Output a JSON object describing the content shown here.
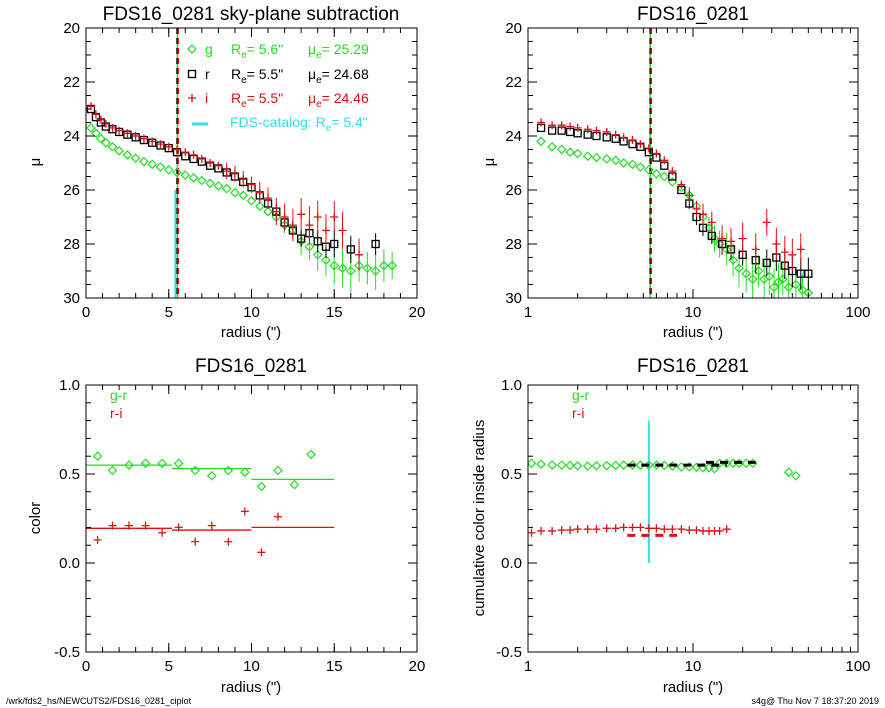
{
  "colors": {
    "g": "#22dd22",
    "r": "#000000",
    "i": "#dd1111",
    "catalog": "#33ddee"
  },
  "footer": {
    "left": "/wrk/fds2_hs/NEWCUTS2/FDS16_0281_ciplot",
    "right": "s4g@  Thu Nov  7 18:37:20 2019"
  },
  "chart_data": [
    {
      "type": "scatter",
      "title": "FDS16_0281 sky-plane subtraction",
      "xlabel": "radius (\")",
      "ylabel": "μ",
      "xlim": [
        0,
        20
      ],
      "ylim": [
        30,
        20
      ],
      "xscale": "linear",
      "xticks": [
        "0",
        "5",
        "10",
        "15",
        "20"
      ],
      "yticks": [
        "20",
        "22",
        "24",
        "26",
        "28",
        "30"
      ],
      "vlines": [
        {
          "x": 5.6,
          "color": "g"
        },
        {
          "x": 5.5,
          "color": "r"
        },
        {
          "x": 5.5,
          "color": "i"
        }
      ],
      "catalog_marker": {
        "x": 5.4,
        "y_from": 26.0,
        "y_to": 30
      },
      "legend": {
        "rows": [
          {
            "band": "g",
            "symbol": "diamond",
            "re_label": "R",
            "re_sub": "e",
            "re_val": "=   5.6\"",
            "mu_label": "μ",
            "mu_sub": "e",
            "mu_val": "= 25.29"
          },
          {
            "band": "r",
            "symbol": "square",
            "re_label": "R",
            "re_sub": "e",
            "re_val": "=   5.5\"",
            "mu_label": "μ",
            "mu_sub": "e",
            "mu_val": "= 24.68"
          },
          {
            "band": "i",
            "symbol": "plus",
            "re_label": "R",
            "re_sub": "e",
            "re_val": "=   5.5\"",
            "mu_label": "μ",
            "mu_sub": "e",
            "mu_val": "= 24.46"
          }
        ],
        "catalog_text": "FDS-catalog: R",
        "catalog_sub": "e",
        "catalog_val": "=   5.4\""
      },
      "series": [
        {
          "name": "g",
          "marker": "diamond",
          "color": "g",
          "x": [
            0.3,
            0.6,
            0.9,
            1.2,
            1.6,
            2.0,
            2.5,
            3.0,
            3.5,
            4.0,
            4.5,
            5.0,
            5.5,
            6.0,
            6.5,
            7.0,
            7.5,
            8.0,
            8.5,
            9.0,
            9.5,
            10.0,
            10.5,
            11.0,
            11.5,
            12.0,
            12.5,
            13.0,
            13.5,
            14.0,
            14.5,
            15.0,
            15.5,
            16.0,
            16.5,
            17.0,
            17.5,
            18.0,
            18.5
          ],
          "y": [
            23.7,
            23.9,
            24.1,
            24.25,
            24.4,
            24.55,
            24.7,
            24.82,
            24.95,
            25.05,
            25.15,
            25.25,
            25.35,
            25.45,
            25.55,
            25.65,
            25.75,
            25.85,
            25.95,
            26.1,
            26.2,
            26.4,
            26.6,
            26.8,
            27.0,
            27.3,
            27.5,
            27.9,
            28.1,
            28.4,
            28.6,
            28.8,
            28.9,
            29.0,
            28.8,
            28.9,
            29.0,
            28.8,
            28.8
          ],
          "err": [
            0,
            0,
            0,
            0,
            0,
            0,
            0,
            0,
            0,
            0,
            0,
            0,
            0,
            0,
            0,
            0,
            0,
            0,
            0,
            0,
            0,
            0,
            0,
            0,
            0,
            0.3,
            0.3,
            0.5,
            0.5,
            0.6,
            0.6,
            0.7,
            0.7,
            0.8,
            0.6,
            0.6,
            0.7,
            0.6,
            0.5
          ]
        },
        {
          "name": "r",
          "marker": "square",
          "color": "r",
          "x": [
            0.3,
            0.6,
            0.9,
            1.2,
            1.6,
            2.0,
            2.5,
            3.0,
            3.5,
            4.0,
            4.5,
            5.0,
            5.5,
            6.0,
            6.5,
            7.0,
            7.5,
            8.0,
            8.5,
            9.0,
            9.5,
            10.0,
            10.5,
            11.0,
            11.5,
            12.0,
            12.5,
            13.0,
            13.5,
            14.0,
            14.5,
            15.0,
            16.0,
            17.5
          ],
          "y": [
            23.0,
            23.3,
            23.5,
            23.65,
            23.75,
            23.85,
            23.95,
            24.05,
            24.15,
            24.25,
            24.35,
            24.45,
            24.6,
            24.75,
            24.85,
            24.95,
            25.1,
            25.2,
            25.35,
            25.5,
            25.7,
            25.9,
            26.2,
            26.5,
            26.8,
            27.2,
            27.5,
            27.8,
            27.6,
            27.9,
            28.1,
            28.0,
            28.2,
            28.0
          ],
          "err": [
            0,
            0,
            0,
            0,
            0,
            0,
            0,
            0,
            0,
            0,
            0,
            0,
            0,
            0,
            0,
            0,
            0,
            0,
            0,
            0,
            0,
            0,
            0.2,
            0.2,
            0.3,
            0.3,
            0.3,
            0.3,
            0.3,
            0.4,
            0.4,
            0.5,
            0.5,
            0.4
          ]
        },
        {
          "name": "i",
          "marker": "plus",
          "color": "i",
          "x": [
            0.3,
            0.6,
            0.9,
            1.2,
            1.6,
            2.0,
            2.5,
            3.0,
            3.5,
            4.0,
            4.5,
            5.0,
            5.5,
            6.0,
            6.5,
            7.0,
            7.5,
            8.0,
            8.5,
            9.0,
            9.5,
            10.0,
            10.5,
            11.0,
            11.5,
            12.0,
            12.5,
            13.0,
            13.5,
            14.0,
            14.5,
            15.0,
            15.5,
            16.5
          ],
          "y": [
            22.9,
            23.2,
            23.4,
            23.55,
            23.7,
            23.8,
            23.9,
            24.0,
            24.1,
            24.2,
            24.3,
            24.4,
            24.5,
            24.6,
            24.7,
            24.85,
            25.0,
            25.1,
            25.3,
            25.4,
            25.6,
            25.8,
            26.1,
            26.3,
            26.8,
            27.0,
            27.3,
            26.9,
            27.3,
            27.0,
            27.5,
            27.0,
            27.5,
            28.4
          ],
          "err": [
            0,
            0,
            0,
            0,
            0,
            0,
            0,
            0,
            0,
            0,
            0,
            0,
            0,
            0,
            0,
            0,
            0,
            0,
            0.3,
            0.3,
            0.3,
            0.3,
            0.4,
            0.4,
            0.5,
            0.5,
            0.6,
            0.6,
            0.7,
            0.6,
            0.6,
            0.6,
            0.7,
            0.6
          ]
        }
      ]
    },
    {
      "type": "scatter",
      "title": "FDS16_0281",
      "xlabel": "radius (\")",
      "ylabel": "μ",
      "xlim": [
        1,
        100
      ],
      "ylim": [
        30,
        20
      ],
      "xscale": "log",
      "xticks": [
        "1",
        "10",
        "100"
      ],
      "yticks": [
        "20",
        "22",
        "24",
        "26",
        "28",
        "30"
      ],
      "vlines": [
        {
          "x": 5.6,
          "color": "g"
        },
        {
          "x": 5.5,
          "color": "r"
        },
        {
          "x": 5.5,
          "color": "i"
        }
      ],
      "series": [
        {
          "name": "g",
          "marker": "diamond",
          "color": "g",
          "x": [
            1.2,
            1.4,
            1.6,
            1.8,
            2.0,
            2.3,
            2.6,
            3.0,
            3.4,
            3.8,
            4.3,
            4.8,
            5.4,
            6.0,
            6.7,
            7.5,
            8.5,
            9.5,
            10.5,
            11.5,
            12.5,
            13.5,
            14.5,
            16,
            17.5,
            19,
            21,
            23,
            25,
            27,
            29,
            31,
            33,
            35,
            38,
            42,
            46,
            50
          ],
          "y": [
            24.2,
            24.4,
            24.5,
            24.6,
            24.65,
            24.75,
            24.8,
            24.85,
            24.9,
            25.0,
            25.05,
            25.15,
            25.25,
            25.4,
            25.5,
            25.7,
            25.9,
            26.2,
            26.6,
            27.0,
            27.4,
            27.8,
            28.0,
            28.2,
            28.6,
            28.9,
            29.1,
            29.3,
            29.0,
            29.3,
            29.2,
            29.6,
            29.4,
            29.3,
            29.6,
            29.5,
            29.7,
            29.8
          ],
          "err": [
            0,
            0,
            0,
            0,
            0,
            0,
            0,
            0,
            0,
            0,
            0,
            0,
            0,
            0,
            0,
            0,
            0,
            0,
            0.2,
            0.3,
            0.4,
            0.5,
            0.5,
            0.6,
            0.6,
            0.7,
            0.7,
            0.7,
            0.6,
            0.7,
            0.7,
            0.7,
            0.7,
            0.6,
            0.7,
            0.6,
            0.6,
            0.5
          ]
        },
        {
          "name": "r",
          "marker": "square",
          "color": "r",
          "x": [
            1.2,
            1.4,
            1.6,
            1.8,
            2.0,
            2.3,
            2.6,
            3.0,
            3.4,
            3.8,
            4.3,
            4.8,
            5.4,
            6.0,
            6.7,
            7.5,
            8.5,
            9.5,
            10.5,
            11.5,
            13,
            15,
            17,
            20,
            24,
            28,
            32,
            36,
            40,
            45,
            50
          ],
          "y": [
            23.7,
            23.8,
            23.8,
            23.85,
            23.9,
            23.95,
            24.0,
            24.05,
            24.1,
            24.2,
            24.3,
            24.4,
            24.6,
            24.8,
            25.1,
            25.5,
            26.0,
            26.5,
            27.0,
            27.4,
            27.7,
            28.0,
            28.2,
            28.4,
            28.6,
            28.7,
            28.5,
            28.8,
            29.0,
            29.1,
            29.1
          ],
          "err": [
            0,
            0,
            0,
            0,
            0,
            0,
            0,
            0,
            0,
            0,
            0,
            0,
            0,
            0,
            0,
            0,
            0,
            0.2,
            0.3,
            0.3,
            0.3,
            0.4,
            0.4,
            0.4,
            0.5,
            0.5,
            0.5,
            0.5,
            0.6,
            0.6,
            0.6
          ]
        },
        {
          "name": "i",
          "marker": "plus",
          "color": "i",
          "x": [
            1.2,
            1.4,
            1.6,
            1.8,
            2.0,
            2.3,
            2.6,
            3.0,
            3.4,
            3.8,
            4.3,
            4.8,
            5.4,
            6.0,
            6.7,
            7.5,
            8.5,
            9.5,
            10.5,
            11.5,
            13,
            15,
            17,
            20,
            24,
            28,
            32,
            36,
            40,
            45
          ],
          "y": [
            23.5,
            23.6,
            23.6,
            23.65,
            23.7,
            23.75,
            23.8,
            23.85,
            23.95,
            24.05,
            24.15,
            24.3,
            24.45,
            24.65,
            24.9,
            25.3,
            25.8,
            26.2,
            26.7,
            26.9,
            27.2,
            27.8,
            27.9,
            27.8,
            28.2,
            27.2,
            28.0,
            28.3,
            28.4,
            28.2
          ],
          "err": [
            0,
            0,
            0,
            0,
            0,
            0,
            0,
            0,
            0,
            0,
            0,
            0,
            0,
            0,
            0,
            0,
            0,
            0.3,
            0.3,
            0.4,
            0.4,
            0.5,
            0.5,
            0.6,
            0.6,
            0.5,
            0.6,
            0.6,
            0.6,
            0.6
          ]
        }
      ]
    },
    {
      "type": "scatter",
      "title": "FDS16_0281",
      "xlabel": "radius (\")",
      "ylabel": "color",
      "xlim": [
        0,
        20
      ],
      "ylim": [
        -0.5,
        1.0
      ],
      "xscale": "linear",
      "xticks": [
        "0",
        "5",
        "10",
        "15",
        "20"
      ],
      "yticks": [
        "-0.5",
        "0.0",
        "0.5",
        "1.0"
      ],
      "legend": {
        "g_r": "g-r",
        "r_i": "r-i"
      },
      "series": [
        {
          "name": "g-r",
          "marker": "diamond",
          "color": "g",
          "x": [
            0.7,
            1.6,
            2.6,
            3.6,
            4.6,
            5.6,
            6.6,
            7.6,
            8.6,
            9.6,
            10.6,
            11.6,
            12.6,
            13.6
          ],
          "y": [
            0.6,
            0.52,
            0.55,
            0.56,
            0.56,
            0.56,
            0.52,
            0.49,
            0.52,
            0.51,
            0.43,
            0.52,
            0.44,
            0.61
          ],
          "segments": [
            [
              0,
              5.2,
              0.55
            ],
            [
              5.2,
              10,
              0.53
            ],
            [
              10,
              15,
              0.47
            ]
          ]
        },
        {
          "name": "r-i",
          "marker": "plus",
          "color": "i",
          "x": [
            0.7,
            1.6,
            2.6,
            3.6,
            4.6,
            5.6,
            6.6,
            7.6,
            8.6,
            9.6,
            10.6,
            11.6
          ],
          "y": [
            0.13,
            0.21,
            0.21,
            0.21,
            0.17,
            0.2,
            0.12,
            0.21,
            0.12,
            0.29,
            0.06,
            0.26
          ],
          "segments": [
            [
              0,
              5.2,
              0.195
            ],
            [
              5.2,
              10,
              0.185
            ],
            [
              10,
              15,
              0.2
            ]
          ]
        }
      ]
    },
    {
      "type": "scatter",
      "title": "FDS16_0281",
      "xlabel": "radius (\")",
      "ylabel": "cumulative color inside radius",
      "xlim": [
        1,
        100
      ],
      "ylim": [
        -0.5,
        1.0
      ],
      "xscale": "log",
      "xticks": [
        "1",
        "10",
        "100"
      ],
      "yticks": [
        "-0.5",
        "0.0",
        "0.5",
        "1.0"
      ],
      "legend": {
        "g_r": "g-r",
        "r_i": "r-i"
      },
      "catalog_marker": {
        "x": 5.4,
        "y_from": 0.0,
        "y_to": 0.8
      },
      "series": [
        {
          "name": "g-r",
          "marker": "diamond",
          "color": "g",
          "x": [
            1.05,
            1.2,
            1.4,
            1.6,
            1.8,
            2.0,
            2.3,
            2.6,
            3.0,
            3.4,
            3.8,
            4.3,
            4.8,
            5.4,
            6.0,
            6.7,
            7.5,
            8.5,
            9.5,
            10.5,
            11.5,
            12.5,
            13.5,
            14.5,
            16,
            17.5,
            19,
            21,
            23,
            38,
            42
          ],
          "y": [
            0.56,
            0.555,
            0.55,
            0.55,
            0.548,
            0.546,
            0.545,
            0.546,
            0.547,
            0.548,
            0.55,
            0.55,
            0.55,
            0.55,
            0.55,
            0.548,
            0.545,
            0.54,
            0.54,
            0.538,
            0.535,
            0.535,
            0.53,
            0.56,
            0.56,
            0.56,
            0.56,
            0.56,
            0.56,
            0.51,
            0.49
          ],
          "segments": [
            [
              4.0,
              16.0,
              0.55
            ],
            [
              12.0,
              24.0,
              0.565
            ]
          ]
        },
        {
          "name": "r-i",
          "marker": "plus",
          "color": "i",
          "x": [
            1.05,
            1.2,
            1.4,
            1.6,
            1.8,
            2.0,
            2.3,
            2.6,
            3.0,
            3.4,
            3.8,
            4.3,
            4.8,
            5.4,
            6.0,
            6.7,
            7.5,
            8.5,
            9.5,
            10.5,
            11.5,
            12.5,
            13.5,
            14.5,
            16
          ],
          "y": [
            0.17,
            0.18,
            0.18,
            0.185,
            0.185,
            0.19,
            0.19,
            0.19,
            0.195,
            0.195,
            0.2,
            0.2,
            0.2,
            0.195,
            0.195,
            0.19,
            0.19,
            0.19,
            0.185,
            0.185,
            0.18,
            0.18,
            0.18,
            0.18,
            0.19
          ],
          "segments": [
            [
              4.0,
              8.0,
              0.155
            ]
          ]
        }
      ]
    }
  ]
}
